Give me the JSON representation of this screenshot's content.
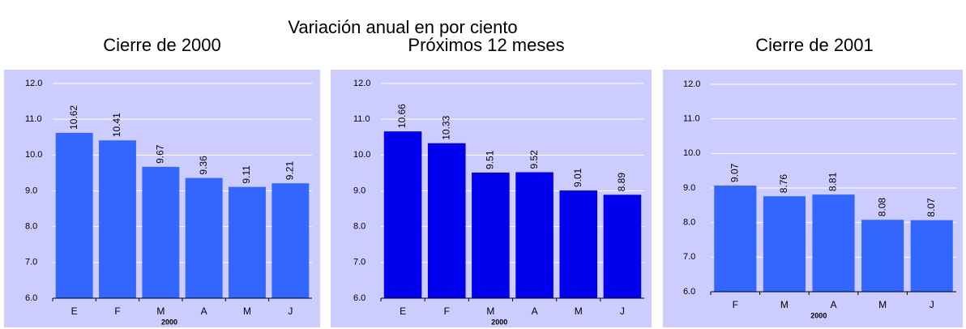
{
  "title": "Variación anual en por ciento",
  "chart_data": [
    {
      "type": "bar",
      "title": "Cierre de 2000",
      "xlabel": "2000",
      "color": "#3366ff",
      "categories": [
        "E",
        "F",
        "M",
        "A",
        "M",
        "J"
      ],
      "values": [
        10.62,
        10.41,
        9.67,
        9.36,
        9.11,
        9.21
      ],
      "ylim": [
        6,
        12
      ],
      "yticks": [
        {
          "value": 6,
          "label": "6.0"
        },
        {
          "value": 7,
          "label": "7.0"
        },
        {
          "value": 8,
          "label": "8.0"
        },
        {
          "value": 9,
          "label": "9.0"
        },
        {
          "value": 10,
          "label": "10.0"
        },
        {
          "value": 11,
          "label": "11.0"
        },
        {
          "value": 12,
          "label": "12.0"
        }
      ],
      "grid": true
    },
    {
      "type": "bar",
      "title": "Próximos 12 meses",
      "xlabel": "2000",
      "color": "#0000ee",
      "categories": [
        "E",
        "F",
        "M",
        "A",
        "M",
        "J"
      ],
      "values": [
        10.66,
        10.33,
        9.51,
        9.52,
        9.01,
        8.89
      ],
      "ylim": [
        6,
        12
      ],
      "yticks": [
        {
          "value": 6,
          "label": "6.0"
        },
        {
          "value": 7,
          "label": "7.0"
        },
        {
          "value": 8,
          "label": "8.0"
        },
        {
          "value": 9,
          "label": "9.0"
        },
        {
          "value": 10,
          "label": "10.0"
        },
        {
          "value": 11,
          "label": "11.0"
        },
        {
          "value": 12,
          "label": "12.0"
        }
      ],
      "grid": true
    },
    {
      "type": "bar",
      "title": "Cierre de 2001",
      "xlabel": "2000",
      "color": "#3366ff",
      "categories": [
        "F",
        "M",
        "A",
        "M",
        "J"
      ],
      "values": [
        9.07,
        8.76,
        8.81,
        8.08,
        8.07
      ],
      "ylim": [
        6,
        12
      ],
      "yticks": [
        {
          "value": 6,
          "label": "6.0"
        },
        {
          "value": 7,
          "label": "7.0"
        },
        {
          "value": 8,
          "label": "8.0"
        },
        {
          "value": 9,
          "label": "9.0"
        },
        {
          "value": 10,
          "label": "10.0"
        },
        {
          "value": 11,
          "label": "11.0"
        },
        {
          "value": 12,
          "label": "12.0"
        }
      ],
      "grid": true
    }
  ]
}
